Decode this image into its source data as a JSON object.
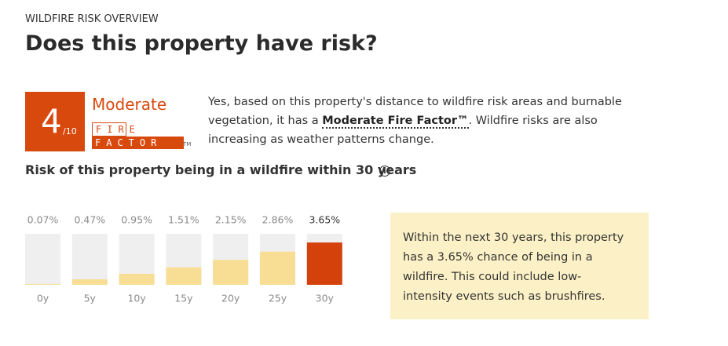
{
  "eyebrow": "WILDFIRE RISK OVERVIEW",
  "title": "Does this property have risk?",
  "badge": {
    "score": "4",
    "denominator": "/10",
    "level": "Moderate",
    "brand_top": "FIRE",
    "brand_bottom": "FACTOR",
    "trademark": "TM"
  },
  "description": {
    "before": "Yes, based on this property's distance to wildfire risk areas and burnable vegetation, it has a ",
    "link": "Moderate Fire Factor™",
    "after": ". Wildfire risks are also increasing as weather patterns change."
  },
  "chart_data": {
    "type": "bar",
    "title": "Risk of this property being in a wildfire within 30 years",
    "categories": [
      "0y",
      "5y",
      "10y",
      "15y",
      "20y",
      "25y",
      "30y"
    ],
    "values": [
      0.07,
      0.47,
      0.95,
      1.51,
      2.15,
      2.86,
      3.65
    ],
    "value_labels": [
      "0.07%",
      "0.47%",
      "0.95%",
      "1.51%",
      "2.15%",
      "2.86%",
      "3.65%"
    ],
    "colors": [
      "#f8dd94",
      "#f8dd94",
      "#f8dd94",
      "#f8dd94",
      "#f8dd94",
      "#f8dd94",
      "#d4410b"
    ],
    "ylim": [
      0,
      4.4
    ]
  },
  "callout": "Within the next 30 years, this property has a 3.65% chance of being in a wildfire. This could include low-intensity events such as brushfires."
}
